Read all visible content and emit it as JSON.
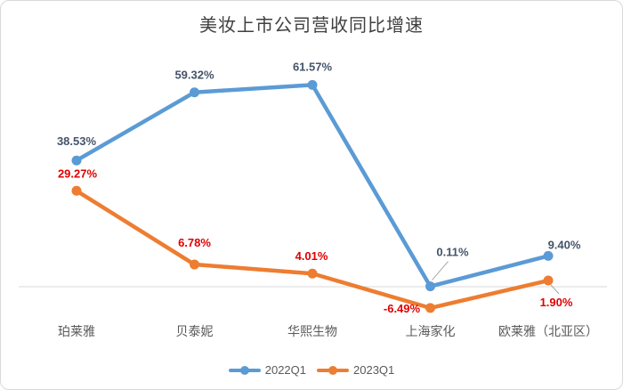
{
  "chart_data": {
    "type": "line",
    "title": "美妆上市公司营收同比增速",
    "categories": [
      "珀莱雅",
      "贝泰妮",
      "华熙生物",
      "上海家化",
      "欧莱雅（北亚区）"
    ],
    "series": [
      {
        "name": "2022Q1",
        "color": "#5B9BD5",
        "label_color": "#44546A",
        "values": [
          38.53,
          59.32,
          61.57,
          0.11,
          9.4
        ],
        "labels": [
          "38.53%",
          "59.32%",
          "61.57%",
          "0.11%",
          "9.40%"
        ]
      },
      {
        "name": "2023Q1",
        "color": "#ED7D31",
        "label_color": "#E00000",
        "values": [
          29.27,
          6.78,
          4.01,
          -6.49,
          1.9
        ],
        "labels": [
          "29.27%",
          "6.78%",
          "4.01%",
          "-6.49%",
          "1.90%"
        ]
      }
    ],
    "ylim": [
      -10,
      70
    ],
    "gridlines": false,
    "zero_axis_line": true,
    "legend_position": "bottom",
    "axis_line_color": "#d9d9d9",
    "leader_line_color": "#a6a6a6",
    "category_label_color": "#595959",
    "title_color": "#404040"
  }
}
